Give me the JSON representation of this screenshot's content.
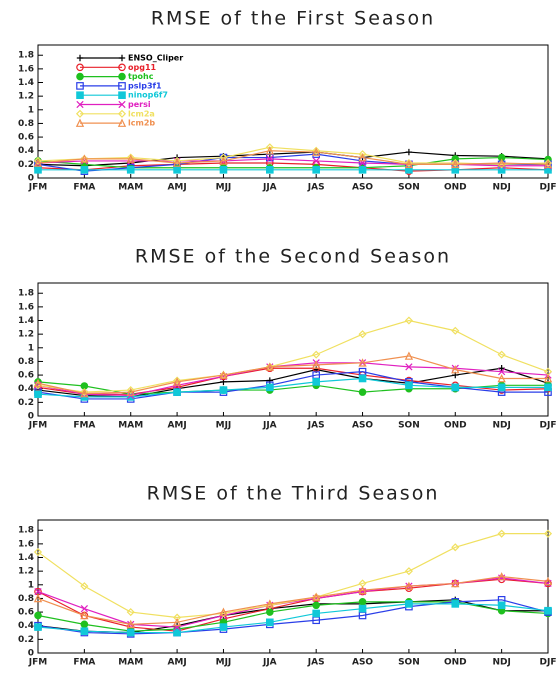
{
  "chart_data": [
    {
      "type": "line",
      "title": "RMSE of the First Season",
      "legend": "upper left",
      "categories": [
        "JFM",
        "FMA",
        "MAM",
        "AMJ",
        "MJJ",
        "JJA",
        "JAS",
        "ASO",
        "SON",
        "OND",
        "NDJ",
        "DJF"
      ],
      "ylim": [
        0,
        1.95
      ],
      "yticks": [
        0,
        0.2,
        0.4,
        0.6,
        0.8,
        1,
        1.2,
        1.4,
        1.6,
        1.8
      ],
      "series": [
        {
          "name": "ENSO_Cliper",
          "color": "#000000",
          "marker": "plus",
          "values": [
            0.2,
            0.18,
            0.22,
            0.3,
            0.32,
            0.35,
            0.38,
            0.3,
            0.38,
            0.33,
            0.32,
            0.28
          ]
        },
        {
          "name": "opg11",
          "color": "#e8202a",
          "marker": "circle",
          "values": [
            0.15,
            0.12,
            0.18,
            0.2,
            0.22,
            0.22,
            0.2,
            0.15,
            0.1,
            0.12,
            0.15,
            0.12
          ]
        },
        {
          "name": "tpohc",
          "color": "#1fc01f",
          "marker": "dot",
          "values": [
            0.25,
            0.2,
            0.15,
            0.15,
            0.15,
            0.15,
            0.15,
            0.15,
            0.18,
            0.28,
            0.3,
            0.27
          ]
        },
        {
          "name": "pslp3f1",
          "color": "#2a3ee8",
          "marker": "square",
          "values": [
            0.2,
            0.1,
            0.15,
            0.2,
            0.3,
            0.3,
            0.35,
            0.25,
            0.2,
            0.2,
            0.2,
            0.2
          ]
        },
        {
          "name": "ninop6f7",
          "color": "#10c8d8",
          "marker": "fsquare",
          "values": [
            0.12,
            0.12,
            0.12,
            0.12,
            0.12,
            0.12,
            0.12,
            0.12,
            0.12,
            0.12,
            0.12,
            0.12
          ]
        },
        {
          "name": "persi",
          "color": "#e020c0",
          "marker": "x",
          "values": [
            0.22,
            0.25,
            0.25,
            0.25,
            0.25,
            0.28,
            0.25,
            0.22,
            0.2,
            0.2,
            0.18,
            0.18
          ]
        },
        {
          "name": "lcm2a",
          "color": "#f0e060",
          "marker": "diamond",
          "values": [
            0.25,
            0.28,
            0.3,
            0.25,
            0.3,
            0.45,
            0.4,
            0.35,
            0.22,
            0.22,
            0.2,
            0.22
          ]
        },
        {
          "name": "lcm2b",
          "color": "#f09050",
          "marker": "triangle",
          "values": [
            0.22,
            0.28,
            0.28,
            0.22,
            0.25,
            0.4,
            0.38,
            0.3,
            0.2,
            0.2,
            0.22,
            0.2
          ]
        }
      ]
    },
    {
      "type": "line",
      "title": "RMSE of the Second Season",
      "categories": [
        "JFM",
        "FMA",
        "MAM",
        "AMJ",
        "MJJ",
        "JJA",
        "JAS",
        "ASO",
        "SON",
        "OND",
        "NDJ",
        "DJF"
      ],
      "ylim": [
        0,
        1.95
      ],
      "yticks": [
        0,
        0.2,
        0.4,
        0.6,
        0.8,
        1,
        1.2,
        1.4,
        1.6,
        1.8
      ],
      "series": [
        {
          "values": [
            0.38,
            0.3,
            0.28,
            0.4,
            0.5,
            0.52,
            0.68,
            0.55,
            0.48,
            0.6,
            0.7,
            0.48
          ]
        },
        {
          "values": [
            0.42,
            0.32,
            0.32,
            0.42,
            0.58,
            0.7,
            0.7,
            0.6,
            0.52,
            0.45,
            0.38,
            0.4
          ]
        },
        {
          "values": [
            0.5,
            0.44,
            0.32,
            0.35,
            0.38,
            0.38,
            0.45,
            0.35,
            0.4,
            0.4,
            0.45,
            0.45
          ]
        },
        {
          "values": [
            0.35,
            0.25,
            0.25,
            0.35,
            0.35,
            0.45,
            0.6,
            0.65,
            0.5,
            0.42,
            0.35,
            0.35
          ]
        },
        {
          "values": [
            0.32,
            0.28,
            0.28,
            0.35,
            0.38,
            0.42,
            0.5,
            0.55,
            0.45,
            0.42,
            0.42,
            0.42
          ]
        },
        {
          "values": [
            0.45,
            0.32,
            0.3,
            0.45,
            0.58,
            0.72,
            0.78,
            0.78,
            0.72,
            0.7,
            0.65,
            0.6
          ]
        },
        {
          "values": [
            0.45,
            0.35,
            0.38,
            0.52,
            0.6,
            0.72,
            0.9,
            1.2,
            1.4,
            1.25,
            0.9,
            0.65
          ]
        },
        {
          "values": [
            0.48,
            0.33,
            0.35,
            0.5,
            0.6,
            0.72,
            0.75,
            0.78,
            0.88,
            0.68,
            0.55,
            0.55
          ]
        }
      ]
    },
    {
      "type": "line",
      "title": "RMSE of the Third Season",
      "categories": [
        "JFM",
        "FMA",
        "MAM",
        "AMJ",
        "MJJ",
        "JJA",
        "JAS",
        "ASO",
        "SON",
        "OND",
        "NDJ",
        "DJF"
      ],
      "ylim": [
        0,
        1.95
      ],
      "yticks": [
        0,
        0.2,
        0.4,
        0.6,
        0.8,
        1,
        1.2,
        1.4,
        1.6,
        1.8
      ],
      "series": [
        {
          "values": [
            0.4,
            0.32,
            0.3,
            0.4,
            0.55,
            0.65,
            0.72,
            0.72,
            0.75,
            0.78,
            0.62,
            0.62
          ]
        },
        {
          "values": [
            0.9,
            0.55,
            0.38,
            0.32,
            0.5,
            0.65,
            0.8,
            0.9,
            0.95,
            1.02,
            1.08,
            1.02
          ]
        },
        {
          "values": [
            0.55,
            0.42,
            0.32,
            0.35,
            0.45,
            0.6,
            0.7,
            0.75,
            0.75,
            0.75,
            0.62,
            0.58
          ]
        },
        {
          "values": [
            0.4,
            0.3,
            0.28,
            0.3,
            0.35,
            0.42,
            0.48,
            0.55,
            0.68,
            0.75,
            0.78,
            0.6
          ]
        },
        {
          "values": [
            0.38,
            0.32,
            0.3,
            0.3,
            0.38,
            0.45,
            0.58,
            0.65,
            0.72,
            0.72,
            0.7,
            0.62
          ]
        },
        {
          "values": [
            0.9,
            0.65,
            0.42,
            0.38,
            0.55,
            0.7,
            0.8,
            0.9,
            0.98,
            1.02,
            1.1,
            1.02
          ]
        },
        {
          "values": [
            1.48,
            0.98,
            0.6,
            0.52,
            0.58,
            0.7,
            0.82,
            1.02,
            1.2,
            1.55,
            1.75,
            1.75
          ]
        },
        {
          "values": [
            0.8,
            0.55,
            0.42,
            0.45,
            0.6,
            0.72,
            0.82,
            0.92,
            0.98,
            1.02,
            1.12,
            1.05
          ]
        }
      ]
    }
  ]
}
